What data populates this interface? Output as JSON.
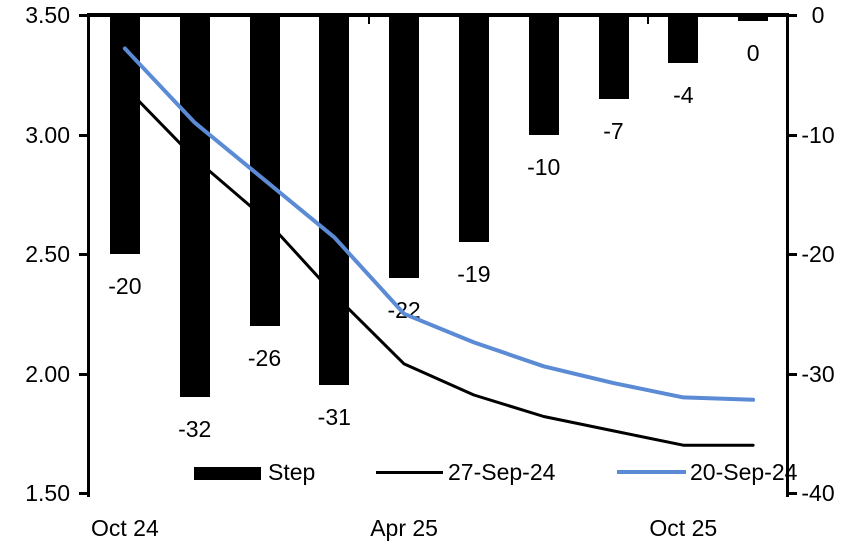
{
  "chart_data": {
    "type": "bar+line combo with dual y-axes",
    "n_categories": 10,
    "x_axis": {
      "tick_labels": [
        "Oct 24",
        "Apr 25",
        "Oct 25"
      ],
      "tick_label_category_index": [
        0,
        4,
        8
      ],
      "boundary_tick_category_index": [
        4,
        8
      ]
    },
    "left_y_axis": {
      "tick_labels": [
        "3.50",
        "3.00",
        "2.50",
        "2.00",
        "1.50"
      ],
      "max": 3.5,
      "min": 1.5
    },
    "right_y_axis": {
      "tick_labels": [
        "0",
        "-10",
        "-20",
        "-30",
        "-40"
      ],
      "max": 0,
      "min": -40
    },
    "bar_series": {
      "name": "Step",
      "axis": "right",
      "color": "#000000",
      "values": [
        -20,
        -32,
        -26,
        -31,
        -22,
        -19,
        -10,
        -7,
        -4,
        -0.5
      ],
      "data_labels": [
        "-20",
        "-32",
        "-26",
        "-31",
        "-22",
        "-19",
        "-10",
        "-7",
        "-4",
        "0"
      ]
    },
    "line_series": [
      {
        "name": "27-Sep-24",
        "axis": "left",
        "color": "#000000",
        "stroke_width": 3,
        "values": [
          3.2,
          2.9,
          2.65,
          2.33,
          2.04,
          1.91,
          1.82,
          1.76,
          1.7,
          1.7
        ]
      },
      {
        "name": "20-Sep-24",
        "axis": "left",
        "color": "#5B8BD5",
        "stroke_width": 4,
        "values": [
          3.36,
          3.05,
          2.81,
          2.57,
          2.25,
          2.13,
          2.03,
          1.96,
          1.9,
          1.89
        ]
      }
    ],
    "legend": {
      "position": "bottom",
      "items": [
        {
          "label": "Step",
          "swatch": "filled-bar",
          "color": "#000000"
        },
        {
          "label": "27-Sep-24",
          "swatch": "line",
          "color": "#000000"
        },
        {
          "label": "20-Sep-24",
          "swatch": "line",
          "color": "#5B8BD5"
        }
      ]
    }
  }
}
